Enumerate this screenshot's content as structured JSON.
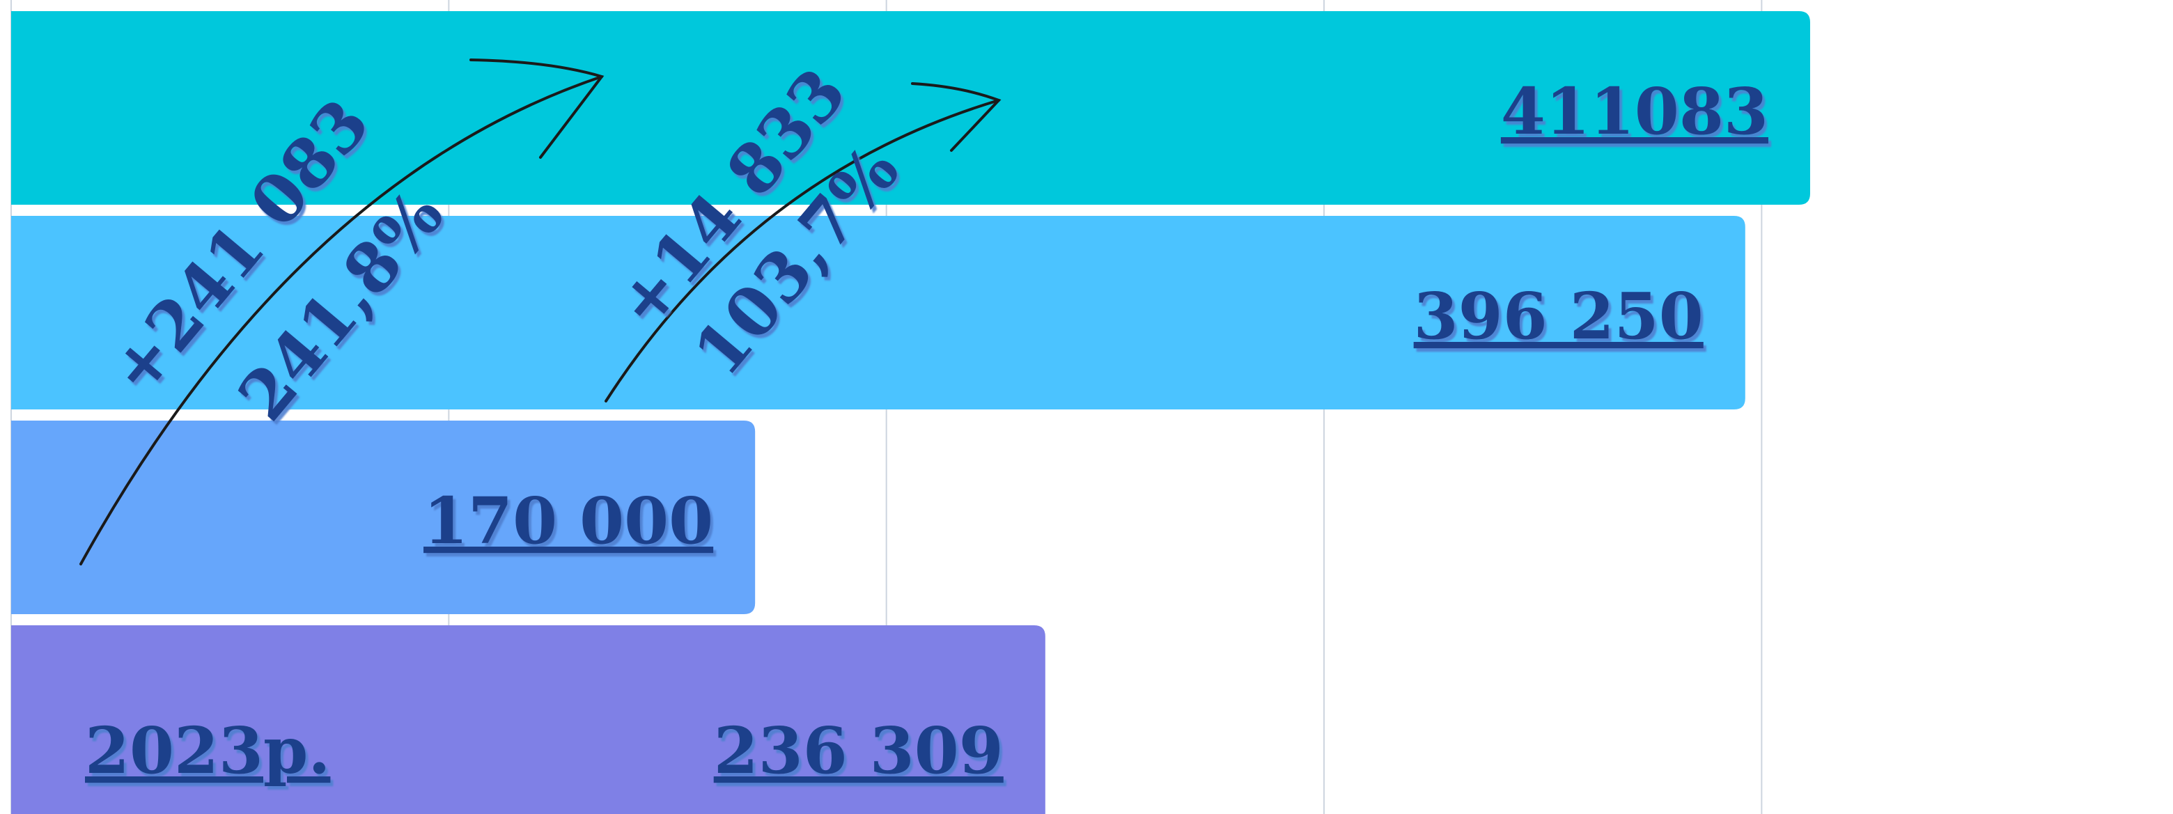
{
  "chart_data": {
    "type": "bar",
    "orientation": "horizontal",
    "categories": [
      null,
      null,
      null,
      "2023р."
    ],
    "values": [
      411083,
      396250,
      170000,
      236309
    ],
    "value_labels": [
      "411083 ",
      "396 250 ",
      "170 000 ",
      "236 309 "
    ],
    "colors": [
      "#00c8dc",
      "#4bc3ff",
      "#66a6fb",
      "#7f80e6"
    ],
    "xlim": [
      0,
      494000
    ],
    "xticks": [
      0,
      100000,
      200000,
      300000,
      400000
    ],
    "grid": true,
    "annotations": [
      "+241 083",
      "241,8%",
      "+14 833",
      "103,7%"
    ]
  }
}
